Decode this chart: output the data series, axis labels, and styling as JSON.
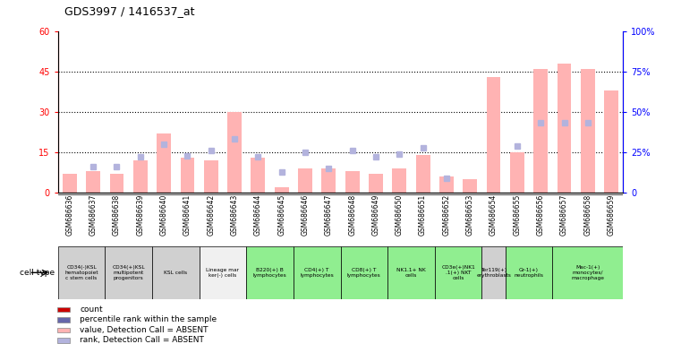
{
  "title": "GDS3997 / 1416537_at",
  "samples": [
    "GSM686636",
    "GSM686637",
    "GSM686638",
    "GSM686639",
    "GSM686640",
    "GSM686641",
    "GSM686642",
    "GSM686643",
    "GSM686644",
    "GSM686645",
    "GSM686646",
    "GSM686647",
    "GSM686648",
    "GSM686649",
    "GSM686650",
    "GSM686651",
    "GSM686652",
    "GSM686653",
    "GSM686654",
    "GSM686655",
    "GSM686656",
    "GSM686657",
    "GSM686658",
    "GSM686659"
  ],
  "count_values": [
    7,
    8,
    7,
    12,
    22,
    13,
    12,
    30,
    13,
    2,
    9,
    9,
    8,
    7,
    9,
    14,
    6,
    5,
    43,
    15,
    46,
    48,
    46,
    38
  ],
  "rank_values": [
    null,
    16,
    16,
    22,
    30,
    23,
    26,
    33,
    22,
    13,
    25,
    15,
    26,
    22,
    24,
    28,
    9,
    null,
    null,
    29,
    43,
    43,
    43,
    null
  ],
  "cell_types": [
    {
      "label": "CD34(-)KSL\nhematopoiet\nc stem cells",
      "start": 0,
      "end": 2,
      "color": "#d0d0d0"
    },
    {
      "label": "CD34(+)KSL\nmultipotent\nprogenitors",
      "start": 2,
      "end": 4,
      "color": "#d0d0d0"
    },
    {
      "label": "KSL cells",
      "start": 4,
      "end": 6,
      "color": "#d0d0d0"
    },
    {
      "label": "Lineage mar\nker(-) cells",
      "start": 6,
      "end": 8,
      "color": "#f0f0f0"
    },
    {
      "label": "B220(+) B\nlymphocytes",
      "start": 8,
      "end": 10,
      "color": "#90ee90"
    },
    {
      "label": "CD4(+) T\nlymphocytes",
      "start": 10,
      "end": 12,
      "color": "#90ee90"
    },
    {
      "label": "CD8(+) T\nlymphocytes",
      "start": 12,
      "end": 14,
      "color": "#90ee90"
    },
    {
      "label": "NK1.1+ NK\ncells",
      "start": 14,
      "end": 16,
      "color": "#90ee90"
    },
    {
      "label": "CD3e(+)NK1\n.1(+) NKT\ncells",
      "start": 16,
      "end": 18,
      "color": "#90ee90"
    },
    {
      "label": "Ter119(+)\nerythroblasts",
      "start": 18,
      "end": 19,
      "color": "#d0d0d0"
    },
    {
      "label": "Gr-1(+)\nneutrophils",
      "start": 19,
      "end": 21,
      "color": "#90ee90"
    },
    {
      "label": "Mac-1(+)\nmonocytes/\nmacrophage",
      "start": 21,
      "end": 24,
      "color": "#90ee90"
    }
  ],
  "ylim_left": [
    0,
    60
  ],
  "ylim_right": [
    0,
    100
  ],
  "yticks_left": [
    0,
    15,
    30,
    45,
    60
  ],
  "yticks_right": [
    0,
    25,
    50,
    75,
    100
  ],
  "ytick_labels_left": [
    "0",
    "15",
    "30",
    "45",
    "60"
  ],
  "ytick_labels_right": [
    "0",
    "25%",
    "50%",
    "75%",
    "100%"
  ],
  "hlines": [
    15,
    30,
    45
  ],
  "absent_bar_color": "#ffb3b3",
  "absent_rank_color": "#b3b3dd",
  "legend_items": [
    {
      "label": "count",
      "color": "#cc0000"
    },
    {
      "label": "percentile rank within the sample",
      "color": "#6666aa"
    },
    {
      "label": "value, Detection Call = ABSENT",
      "color": "#ffb3b3"
    },
    {
      "label": "rank, Detection Call = ABSENT",
      "color": "#b3b3dd"
    }
  ]
}
